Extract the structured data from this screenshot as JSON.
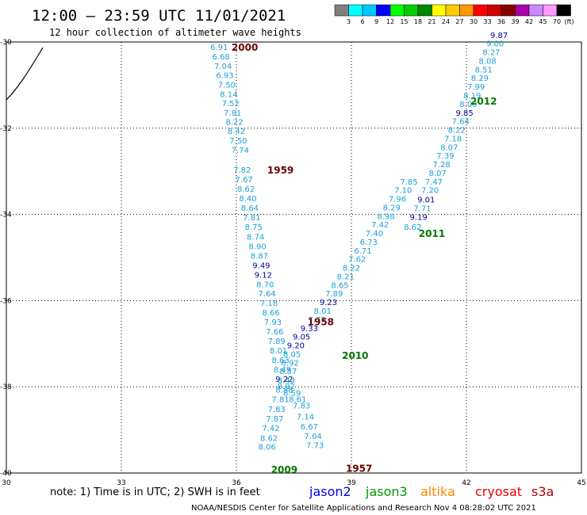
{
  "header": {
    "title": "12:00 — 23:59 UTC 11/01/2021",
    "subtitle": "12 hour collection of altimeter wave heights"
  },
  "colorbar": {
    "labels": [
      "3",
      "6",
      "9",
      "12",
      "15",
      "18",
      "21",
      "24",
      "27",
      "30",
      "33",
      "36",
      "39",
      "42",
      "45",
      "70"
    ],
    "unit": "(ft)",
    "colors": [
      "#7f7f7f",
      "#00ffff",
      "#00c8ff",
      "#0000ff",
      "#00ff00",
      "#00cc00",
      "#008800",
      "#ffff00",
      "#ffcc00",
      "#ff9900",
      "#ff0000",
      "#cc0000",
      "#880000",
      "#aa00aa",
      "#cc88ff",
      "#ff99ff",
      "#000000"
    ]
  },
  "chart_data": {
    "type": "scatter",
    "xlim": [
      30,
      45
    ],
    "ylim": [
      -40,
      -30
    ],
    "x_ticks": [
      "30",
      "33",
      "36",
      "39",
      "42",
      "45"
    ],
    "y_ticks": [
      "-30",
      "-32",
      "-34",
      "-36",
      "-38",
      "-40"
    ],
    "grid": true,
    "series": [
      {
        "name": "pass-2000-1957",
        "color_map": {
          "cyan": "#1aa0d8",
          "blue": "#000099"
        },
        "times": [
          {
            "label": "2000",
            "x": 36.22,
            "y": -30.13,
            "color": "#6b0000"
          },
          {
            "label": "1959",
            "x": 37.15,
            "y": -32.98,
            "color": "#6b0000"
          },
          {
            "label": "1958",
            "x": 38.2,
            "y": -36.5,
            "color": "#6b0000"
          },
          {
            "label": "1957",
            "x": 39.2,
            "y": -39.9,
            "color": "#6b0000"
          }
        ],
        "points": [
          {
            "x": 35.55,
            "y": -30.13,
            "value": "6.91",
            "c": "cyan"
          },
          {
            "x": 35.6,
            "y": -30.35,
            "value": "6.68",
            "c": "cyan"
          },
          {
            "x": 35.65,
            "y": -30.57,
            "value": "7.04",
            "c": "cyan"
          },
          {
            "x": 35.7,
            "y": -30.78,
            "value": "6.93",
            "c": "cyan"
          },
          {
            "x": 35.75,
            "y": -31.0,
            "value": "7.50",
            "c": "cyan"
          },
          {
            "x": 35.8,
            "y": -31.22,
            "value": "8.14",
            "c": "cyan"
          },
          {
            "x": 35.85,
            "y": -31.43,
            "value": "7.52",
            "c": "cyan"
          },
          {
            "x": 35.9,
            "y": -31.65,
            "value": "7.81",
            "c": "cyan"
          },
          {
            "x": 35.95,
            "y": -31.87,
            "value": "8.22",
            "c": "cyan"
          },
          {
            "x": 36.0,
            "y": -32.08,
            "value": "8.42",
            "c": "cyan"
          },
          {
            "x": 36.05,
            "y": -32.3,
            "value": "7.50",
            "c": "cyan"
          },
          {
            "x": 36.1,
            "y": -32.52,
            "value": "7.74",
            "c": "cyan"
          },
          {
            "x": 36.15,
            "y": -32.98,
            "value": "7.82",
            "c": "cyan"
          },
          {
            "x": 36.2,
            "y": -33.2,
            "value": "7.67",
            "c": "cyan"
          },
          {
            "x": 36.25,
            "y": -33.42,
            "value": "8.62",
            "c": "cyan"
          },
          {
            "x": 36.3,
            "y": -33.64,
            "value": "8.40",
            "c": "cyan"
          },
          {
            "x": 36.35,
            "y": -33.86,
            "value": "8.64",
            "c": "cyan"
          },
          {
            "x": 36.4,
            "y": -34.08,
            "value": "7.81",
            "c": "cyan"
          },
          {
            "x": 36.45,
            "y": -34.3,
            "value": "8.75",
            "c": "cyan"
          },
          {
            "x": 36.5,
            "y": -34.53,
            "value": "8.74",
            "c": "cyan"
          },
          {
            "x": 36.55,
            "y": -34.75,
            "value": "8.90",
            "c": "cyan"
          },
          {
            "x": 36.6,
            "y": -34.97,
            "value": "8.87",
            "c": "cyan"
          },
          {
            "x": 36.65,
            "y": -35.19,
            "value": "9.49",
            "c": "blue"
          },
          {
            "x": 36.7,
            "y": -35.41,
            "value": "9.12",
            "c": "blue"
          },
          {
            "x": 36.75,
            "y": -35.63,
            "value": "8.70",
            "c": "cyan"
          },
          {
            "x": 36.8,
            "y": -35.85,
            "value": "7.64",
            "c": "cyan"
          },
          {
            "x": 36.85,
            "y": -36.07,
            "value": "7.18",
            "c": "cyan"
          },
          {
            "x": 36.9,
            "y": -36.29,
            "value": "8.66",
            "c": "cyan"
          },
          {
            "x": 36.95,
            "y": -36.51,
            "value": "7.93",
            "c": "cyan"
          },
          {
            "x": 37.0,
            "y": -36.73,
            "value": "7.66",
            "c": "cyan"
          },
          {
            "x": 37.05,
            "y": -36.95,
            "value": "7.89",
            "c": "cyan"
          },
          {
            "x": 37.1,
            "y": -37.17,
            "value": "8.01",
            "c": "cyan"
          },
          {
            "x": 37.15,
            "y": -37.39,
            "value": "8.63",
            "c": "cyan"
          },
          {
            "x": 37.2,
            "y": -37.61,
            "value": "8.49",
            "c": "cyan"
          },
          {
            "x": 37.25,
            "y": -37.83,
            "value": "9.22",
            "c": "blue"
          },
          {
            "x": 37.3,
            "y": -38.0,
            "value": "8.92",
            "c": "cyan"
          },
          {
            "x": 37.45,
            "y": -38.15,
            "value": "8.59",
            "c": "cyan"
          },
          {
            "x": 37.6,
            "y": -38.3,
            "value": "8.61",
            "c": "cyan"
          },
          {
            "x": 37.7,
            "y": -38.45,
            "value": "7.83",
            "c": "cyan"
          },
          {
            "x": 37.8,
            "y": -38.7,
            "value": "7.14",
            "c": "cyan"
          },
          {
            "x": 37.9,
            "y": -38.93,
            "value": "6.67",
            "c": "cyan"
          },
          {
            "x": 38.0,
            "y": -39.15,
            "value": "7.04",
            "c": "cyan"
          },
          {
            "x": 38.05,
            "y": -39.37,
            "value": "7.73",
            "c": "cyan"
          }
        ]
      },
      {
        "name": "pass-2009-2012",
        "color_map": {
          "cyan": "#1aa0d8",
          "blue": "#000099"
        },
        "times": [
          {
            "label": "2009",
            "x": 37.25,
            "y": -39.93,
            "color": "#007700"
          },
          {
            "label": "2010",
            "x": 39.1,
            "y": -37.28,
            "color": "#007700"
          },
          {
            "label": "2011",
            "x": 41.1,
            "y": -34.45,
            "color": "#007700"
          },
          {
            "label": "2012",
            "x": 42.45,
            "y": -31.38,
            "color": "#007700"
          }
        ],
        "points": [
          {
            "x": 36.8,
            "y": -39.4,
            "value": "8.06",
            "c": "cyan"
          },
          {
            "x": 36.85,
            "y": -39.2,
            "value": "8.62",
            "c": "cyan"
          },
          {
            "x": 36.9,
            "y": -38.97,
            "value": "7.42",
            "c": "cyan"
          },
          {
            "x": 37.0,
            "y": -38.75,
            "value": "7.87",
            "c": "cyan"
          },
          {
            "x": 37.05,
            "y": -38.53,
            "value": "7.83",
            "c": "cyan"
          },
          {
            "x": 37.15,
            "y": -38.3,
            "value": "7.81",
            "c": "cyan"
          },
          {
            "x": 37.25,
            "y": -38.08,
            "value": "8.88",
            "c": "cyan"
          },
          {
            "x": 37.3,
            "y": -37.86,
            "value": "8.43",
            "c": "cyan"
          },
          {
            "x": 37.35,
            "y": -37.65,
            "value": "8.57",
            "c": "cyan"
          },
          {
            "x": 37.4,
            "y": -37.45,
            "value": "8.92",
            "c": "cyan"
          },
          {
            "x": 37.45,
            "y": -37.25,
            "value": "8.05",
            "c": "cyan"
          },
          {
            "x": 37.55,
            "y": -37.05,
            "value": "9.20",
            "c": "blue"
          },
          {
            "x": 37.7,
            "y": -36.85,
            "value": "9.05",
            "c": "blue"
          },
          {
            "x": 37.9,
            "y": -36.65,
            "value": "9.33",
            "c": "blue"
          },
          {
            "x": 38.1,
            "y": -36.45,
            "value": "7.77",
            "c": "cyan"
          },
          {
            "x": 38.25,
            "y": -36.25,
            "value": "8.01",
            "c": "cyan"
          },
          {
            "x": 38.4,
            "y": -36.05,
            "value": "9.23",
            "c": "blue"
          },
          {
            "x": 38.55,
            "y": -35.85,
            "value": "7.89",
            "c": "cyan"
          },
          {
            "x": 38.7,
            "y": -35.65,
            "value": "8.65",
            "c": "cyan"
          },
          {
            "x": 38.85,
            "y": -35.45,
            "value": "8.21",
            "c": "cyan"
          },
          {
            "x": 39.0,
            "y": -35.25,
            "value": "8.22",
            "c": "cyan"
          },
          {
            "x": 39.15,
            "y": -35.05,
            "value": "7.62",
            "c": "cyan"
          },
          {
            "x": 39.3,
            "y": -34.85,
            "value": "6.71",
            "c": "cyan"
          },
          {
            "x": 39.45,
            "y": -34.65,
            "value": "6.73",
            "c": "cyan"
          },
          {
            "x": 39.6,
            "y": -34.45,
            "value": "7.40",
            "c": "cyan"
          },
          {
            "x": 39.75,
            "y": -34.25,
            "value": "7.42",
            "c": "cyan"
          },
          {
            "x": 39.9,
            "y": -34.05,
            "value": "8.98",
            "c": "cyan"
          },
          {
            "x": 40.05,
            "y": -33.85,
            "value": "8.29",
            "c": "cyan"
          },
          {
            "x": 40.2,
            "y": -33.65,
            "value": "7.96",
            "c": "cyan"
          },
          {
            "x": 40.35,
            "y": -33.45,
            "value": "7.10",
            "c": "cyan"
          },
          {
            "x": 40.5,
            "y": -33.25,
            "value": "7.85",
            "c": "cyan"
          },
          {
            "x": 40.6,
            "y": -34.3,
            "value": "8.62",
            "c": "cyan"
          },
          {
            "x": 40.75,
            "y": -34.07,
            "value": "9.19",
            "c": "blue"
          },
          {
            "x": 40.85,
            "y": -33.87,
            "value": "7.71",
            "c": "cyan"
          },
          {
            "x": 40.95,
            "y": -33.67,
            "value": "9.01",
            "c": "blue"
          },
          {
            "x": 41.05,
            "y": -33.45,
            "value": "7.20",
            "c": "cyan"
          },
          {
            "x": 41.15,
            "y": -33.25,
            "value": "7.47",
            "c": "cyan"
          },
          {
            "x": 41.25,
            "y": -33.05,
            "value": "8.07",
            "c": "cyan"
          },
          {
            "x": 41.35,
            "y": -32.85,
            "value": "7.28",
            "c": "cyan"
          },
          {
            "x": 41.45,
            "y": -32.65,
            "value": "7.39",
            "c": "cyan"
          },
          {
            "x": 41.55,
            "y": -32.45,
            "value": "8.07",
            "c": "cyan"
          },
          {
            "x": 41.65,
            "y": -32.25,
            "value": "7.18",
            "c": "cyan"
          },
          {
            "x": 41.75,
            "y": -32.05,
            "value": "8.22",
            "c": "cyan"
          },
          {
            "x": 41.85,
            "y": -31.85,
            "value": "7.64",
            "c": "cyan"
          },
          {
            "x": 41.95,
            "y": -31.65,
            "value": "9.85",
            "c": "blue"
          },
          {
            "x": 42.05,
            "y": -31.45,
            "value": "8.00",
            "c": "cyan"
          },
          {
            "x": 42.15,
            "y": -31.25,
            "value": "8.19",
            "c": "cyan"
          },
          {
            "x": 42.25,
            "y": -31.05,
            "value": "7.99",
            "c": "cyan"
          },
          {
            "x": 42.35,
            "y": -30.85,
            "value": "8.29",
            "c": "cyan"
          },
          {
            "x": 42.45,
            "y": -30.65,
            "value": "8.51",
            "c": "cyan"
          },
          {
            "x": 42.55,
            "y": -30.45,
            "value": "8.08",
            "c": "cyan"
          },
          {
            "x": 42.65,
            "y": -30.25,
            "value": "8.27",
            "c": "cyan"
          },
          {
            "x": 42.75,
            "y": -30.05,
            "value": "9.00",
            "c": "cyan"
          },
          {
            "x": 42.85,
            "y": -29.85,
            "value": "9.87",
            "c": "blue"
          }
        ]
      }
    ]
  },
  "footer": {
    "note": "note: 1) Time is in UTC; 2) SWH is in feet",
    "satellites": [
      {
        "name": "jason2",
        "color": "#0000ee"
      },
      {
        "name": "jason3",
        "color": "#009900"
      },
      {
        "name": "altika",
        "color": "#ff8800"
      },
      {
        "name": "cryosat",
        "color": "#ee0000"
      },
      {
        "name": "s3a",
        "color": "#aa0000"
      }
    ],
    "credit": "NOAA/NESDIS Center for Satellite Applications and Research    Nov  4 08:28:02 UTC 2021"
  }
}
